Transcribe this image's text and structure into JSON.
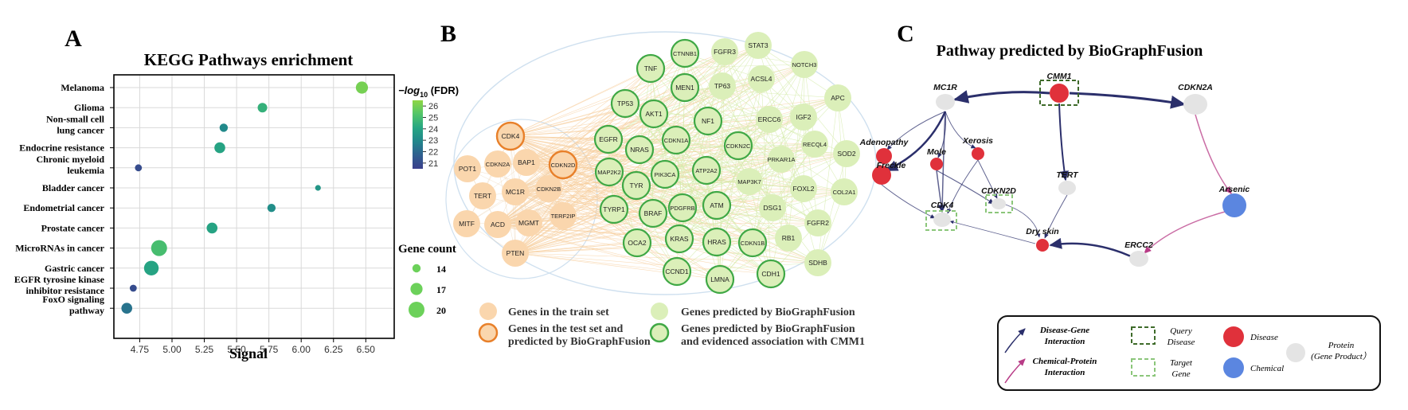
{
  "panels": {
    "a": "A",
    "b": "B",
    "c": "C"
  },
  "chart_data": [
    {
      "type": "scatter",
      "title": "KEGG Pathways enrichment",
      "xlabel": "Signal",
      "ylabel": "",
      "xlim": [
        4.55,
        6.72
      ],
      "xticks": [
        "4.75",
        "5.00",
        "5.25",
        "5.50",
        "5.75",
        "6.00",
        "6.25",
        "6.50"
      ],
      "grid": true,
      "categories": [
        "Melanoma",
        "Glioma",
        "Non-small cell\nlung cancer",
        "Endocrine resistance",
        "Chronic myeloid\nleukemia",
        "Bladder cancer",
        "Endometrial cancer",
        "Prostate cancer",
        "MicroRNAs in cancer",
        "Gastric cancer",
        "EGFR tyrosine kinase\ninhibitor resistance",
        "FoxO signaling\npathway"
      ],
      "points": [
        {
          "category": "Melanoma",
          "signal": 6.47,
          "fdr": 26,
          "count": 17
        },
        {
          "category": "Glioma",
          "signal": 5.7,
          "fdr": 24.5,
          "count": 15
        },
        {
          "category": "Non-small cell\nlung cancer",
          "signal": 5.4,
          "fdr": 23,
          "count": 14
        },
        {
          "category": "Endocrine resistance",
          "signal": 5.37,
          "fdr": 24,
          "count": 16
        },
        {
          "category": "Chronic myeloid\nleukemia",
          "signal": 4.74,
          "fdr": 21,
          "count": 13
        },
        {
          "category": "Bladder cancer",
          "signal": 6.13,
          "fdr": 23.5,
          "count": 12
        },
        {
          "category": "Endometrial cancer",
          "signal": 5.77,
          "fdr": 23.2,
          "count": 14
        },
        {
          "category": "Prostate cancer",
          "signal": 5.31,
          "fdr": 24,
          "count": 16
        },
        {
          "category": "MicroRNAs in cancer",
          "signal": 4.9,
          "fdr": 25,
          "count": 20
        },
        {
          "category": "Gastric cancer",
          "signal": 4.84,
          "fdr": 24,
          "count": 19
        },
        {
          "category": "EGFR tyrosine kinase\ninhibitor resistance",
          "signal": 4.7,
          "fdr": 21,
          "count": 13
        },
        {
          "category": "FoxO signaling\npathway",
          "signal": 4.65,
          "fdr": 22.3,
          "count": 16
        }
      ],
      "colorbar": {
        "label_prefix": "−log",
        "label_sub": "10",
        "label_suffix": " (FDR)",
        "ticks": [
          "26",
          "25",
          "24",
          "23",
          "22",
          "21"
        ],
        "range": [
          20.5,
          26.5
        ],
        "colors": [
          "#3b3f8c",
          "#2f5f8f",
          "#21868b",
          "#26a682",
          "#52c569",
          "#8fd744"
        ]
      },
      "size_legend": {
        "title": "Gene count",
        "items": [
          {
            "label": "14",
            "count": 14
          },
          {
            "label": "17",
            "count": 17
          },
          {
            "label": "20",
            "count": 20
          }
        ],
        "color": "#6cd15a"
      }
    }
  ],
  "network_b": {
    "train_nodes": [
      "CDK4",
      "POT1",
      "CDKN2A",
      "BAP1",
      "CDKN2D",
      "TERT",
      "MC1R",
      "CDKN2B",
      "MITF",
      "ACD",
      "MGMT",
      "TERF2IP",
      "PTEN"
    ],
    "test_nodes": [
      "CDK4",
      "CDKN2D"
    ],
    "predicted_evidenced": [
      "CTNNB1",
      "TNF",
      "MEN1",
      "TP53",
      "AKT1",
      "NF1",
      "EGFR",
      "NRAS",
      "CDKN1A",
      "CDKN2C",
      "MAP2K2",
      "PIK3CA",
      "TYR",
      "ATP2A2",
      "TYRP1",
      "BRAF",
      "PDGFRB",
      "ATM",
      "OCA2",
      "KRAS",
      "HRAS",
      "CDKN1B",
      "CCND1",
      "LMNA",
      "CDH1"
    ],
    "predicted_only": [
      "FGFR3",
      "STAT3",
      "NOTCH3",
      "ACSL4",
      "TP63",
      "APC",
      "ERCC6",
      "IGF2",
      "RECQL4",
      "SOD2",
      "PRKAR1A",
      "MAP3K7",
      "FOXL2",
      "COL2A1",
      "DSG1",
      "FGFR2",
      "RB1",
      "SDHB"
    ],
    "legend": [
      {
        "label": "Genes in the train set",
        "style": "train"
      },
      {
        "label": "Genes predicted by BioGraphFusion",
        "style": "pred"
      },
      {
        "label": "Genes in the test set and\npredicted by BioGraphFusion",
        "style": "test"
      },
      {
        "label": "Genes predicted by BioGraphFusion\nand evidenced association with CMM1",
        "style": "evid"
      }
    ],
    "colors": {
      "train": "#fad6ad",
      "test_stroke": "#e8802a",
      "pred": "#dbefb9",
      "evid_stroke": "#3fa845"
    }
  },
  "network_c": {
    "title": "Pathway predicted by BioGraphFusion",
    "nodes": [
      {
        "id": "MC1R",
        "type": "protein"
      },
      {
        "id": "CMM1",
        "type": "disease",
        "query": true
      },
      {
        "id": "CDKN2A",
        "type": "protein"
      },
      {
        "id": "Adenopathy",
        "type": "disease"
      },
      {
        "id": "Freckle",
        "type": "disease"
      },
      {
        "id": "Mole",
        "type": "disease"
      },
      {
        "id": "Xerosis",
        "type": "disease"
      },
      {
        "id": "TERT",
        "type": "protein"
      },
      {
        "id": "CDK4",
        "type": "protein",
        "target": true
      },
      {
        "id": "CDKN2D",
        "type": "protein",
        "target": true
      },
      {
        "id": "Dry skin",
        "type": "disease"
      },
      {
        "id": "Arsenic",
        "type": "chemical"
      },
      {
        "id": "ERCC2",
        "type": "protein"
      }
    ],
    "legend": {
      "disease_gene": "Disease-Gene\nInteraction",
      "chemical_protein": "Chemical-Protein\nInteraction",
      "query": "Query\nDisease",
      "target": "Target\nGene",
      "disease": "Disease",
      "chemical": "Chemical",
      "protein": "Protein\n(Gene Product）"
    },
    "colors": {
      "disease": "#e0313b",
      "chemical": "#5b86e0",
      "protein": "#e4e4e4",
      "dg_edge": "#2b2f6b",
      "cp_edge": "#b83c87",
      "query_box": "#3e6b2a",
      "target_box": "#8bc67a"
    }
  }
}
